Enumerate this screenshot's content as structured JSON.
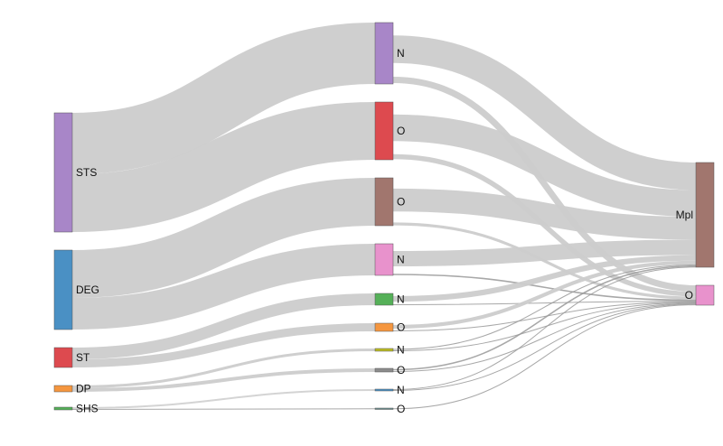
{
  "chart_data": {
    "type": "sankey",
    "nodes": [
      {
        "id": "STS",
        "label": "STS",
        "column": 0,
        "color": "#a886c8"
      },
      {
        "id": "DEG",
        "label": "DEG",
        "column": 0,
        "color": "#4a90c4"
      },
      {
        "id": "ST",
        "label": "ST",
        "column": 0,
        "color": "#dd4a4f"
      },
      {
        "id": "DP",
        "label": "DP",
        "column": 0,
        "color": "#f5963f"
      },
      {
        "id": "SHS",
        "label": "SHS",
        "column": 0,
        "color": "#55b058"
      },
      {
        "id": "STS_N",
        "label": "N",
        "column": 1,
        "color": "#a886c8"
      },
      {
        "id": "STS_O",
        "label": "O",
        "column": 1,
        "color": "#dd4a4f"
      },
      {
        "id": "DEG_O",
        "label": "O",
        "column": 1,
        "color": "#a1766e"
      },
      {
        "id": "DEG_N",
        "label": "N",
        "column": 1,
        "color": "#e892cc"
      },
      {
        "id": "ST_N",
        "label": "N",
        "column": 1,
        "color": "#55b058"
      },
      {
        "id": "ST_O",
        "label": "O",
        "column": 1,
        "color": "#f5963f"
      },
      {
        "id": "DP_N",
        "label": "N",
        "column": 1,
        "color": "#bcbd22"
      },
      {
        "id": "DP_O",
        "label": "O",
        "column": 1,
        "color": "#8c8c8c"
      },
      {
        "id": "SHS_N",
        "label": "N",
        "column": 1,
        "color": "#4a90c4"
      },
      {
        "id": "SHS_O",
        "label": "O",
        "column": 1,
        "color": "#6b8e8e"
      },
      {
        "id": "Mpl",
        "label": "Mpl",
        "column": 2,
        "color": "#a1766e"
      },
      {
        "id": "O_end",
        "label": "O",
        "column": 2,
        "color": "#e892cc"
      }
    ],
    "links": [
      {
        "source": "STS",
        "target": "STS_N",
        "value": 68
      },
      {
        "source": "STS",
        "target": "STS_O",
        "value": 64
      },
      {
        "source": "DEG",
        "target": "DEG_O",
        "value": 53
      },
      {
        "source": "DEG",
        "target": "DEG_N",
        "value": 35
      },
      {
        "source": "ST",
        "target": "ST_N",
        "value": 13
      },
      {
        "source": "ST",
        "target": "ST_O",
        "value": 9
      },
      {
        "source": "DP",
        "target": "DP_N",
        "value": 3
      },
      {
        "source": "DP",
        "target": "DP_O",
        "value": 4
      },
      {
        "source": "SHS",
        "target": "SHS_N",
        "value": 2
      },
      {
        "source": "SHS",
        "target": "SHS_O",
        "value": 1
      },
      {
        "source": "STS_N",
        "target": "Mpl",
        "value": 59
      },
      {
        "source": "STS_N",
        "target": "O_end",
        "value": 9
      },
      {
        "source": "STS_O",
        "target": "Mpl",
        "value": 57
      },
      {
        "source": "STS_O",
        "target": "O_end",
        "value": 7
      },
      {
        "source": "DEG_O",
        "target": "Mpl",
        "value": 49
      },
      {
        "source": "DEG_O",
        "target": "O_end",
        "value": 4
      },
      {
        "source": "DEG_N",
        "target": "Mpl",
        "value": 33
      },
      {
        "source": "DEG_N",
        "target": "O_end",
        "value": 2
      },
      {
        "source": "ST_N",
        "target": "Mpl",
        "value": 12
      },
      {
        "source": "ST_N",
        "target": "O_end",
        "value": 1
      },
      {
        "source": "ST_O",
        "target": "Mpl",
        "value": 8
      },
      {
        "source": "ST_O",
        "target": "O_end",
        "value": 1
      },
      {
        "source": "DP_N",
        "target": "Mpl",
        "value": 2
      },
      {
        "source": "DP_N",
        "target": "O_end",
        "value": 1
      },
      {
        "source": "DP_O",
        "target": "Mpl",
        "value": 3
      },
      {
        "source": "DP_O",
        "target": "O_end",
        "value": 1
      },
      {
        "source": "SHS_N",
        "target": "Mpl",
        "value": 1
      },
      {
        "source": "SHS_N",
        "target": "O_end",
        "value": 1
      },
      {
        "source": "SHS_O",
        "target": "O_end",
        "value": 1
      }
    ],
    "link_color": "#cccccc",
    "node_border_color": "#555555"
  }
}
